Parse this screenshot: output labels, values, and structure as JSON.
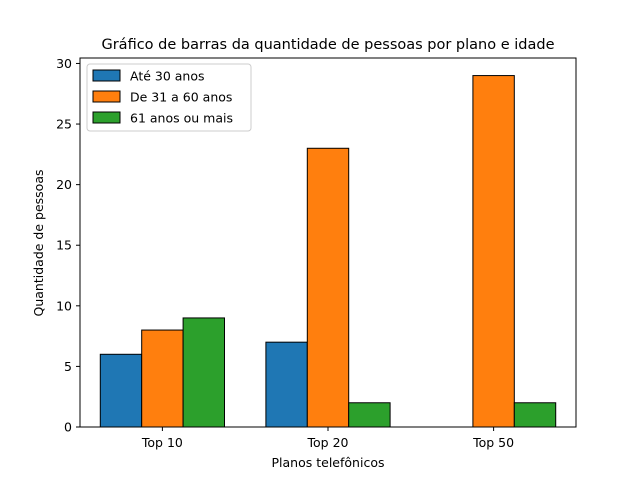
{
  "chart_data": {
    "type": "bar",
    "title": "Gráfico de barras da quantidade de pessoas por plano e idade",
    "xlabel": "Planos telefônicos",
    "ylabel": "Quantidade de pessoas",
    "categories": [
      "Top 10",
      "Top 20",
      "Top 50"
    ],
    "series": [
      {
        "name": "Até 30 anos",
        "values": [
          6,
          7,
          0
        ],
        "color": "#1f77b4"
      },
      {
        "name": "De 31 a 60 anos",
        "values": [
          8,
          23,
          29
        ],
        "color": "#ff7f0e"
      },
      {
        "name": "61 anos ou mais",
        "values": [
          9,
          2,
          2
        ],
        "color": "#2ca02c"
      }
    ],
    "ylim": [
      0,
      30.45
    ],
    "yticks": [
      0,
      5,
      10,
      15,
      20,
      25,
      30
    ],
    "grid": false,
    "legend_position": "upper left"
  }
}
